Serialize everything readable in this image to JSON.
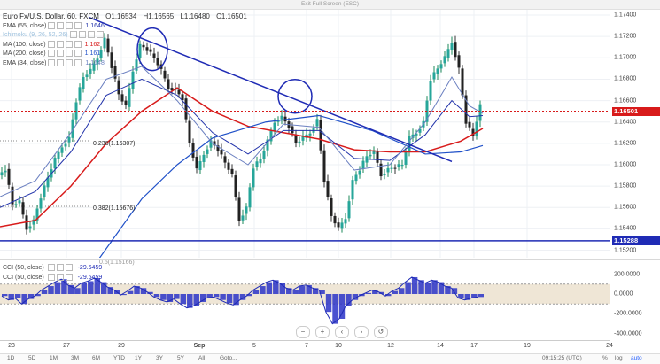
{
  "fullscreen_hint": "Exit Full Screen (ESC)",
  "header": {
    "symbol": "Euro Fx/U.S. Dollar, 60, FXCM",
    "open": "O1.16534",
    "high": "H1.16565",
    "low": "L1.16480",
    "close": "C1.16501"
  },
  "indicators": [
    {
      "name": "EMA (55, close)",
      "value": "1.1646",
      "color": "#2233aa"
    },
    {
      "name": "Ichimoku (9, 26, 52, 26)",
      "value": "",
      "color": "#7fb0d8"
    },
    {
      "name": "MA (100, close)",
      "value": "1.162",
      "color": "#d81b1b"
    },
    {
      "name": "MA (200, close)",
      "value": "1.161",
      "color": "#1f50c8"
    },
    {
      "name": "EMA (34, close)",
      "value": "1.1648",
      "color": "#6a7fc0"
    }
  ],
  "price_axis": {
    "ticks": [
      "1.17400",
      "1.17200",
      "1.17000",
      "1.16800",
      "1.16600",
      "1.16400",
      "1.16200",
      "1.16000",
      "1.15800",
      "1.15600",
      "1.15400",
      "1.15200"
    ],
    "current_price": "1.16501",
    "current_color": "#d81b1b",
    "support_price": "1.15288",
    "support_color": "#1f2bb5"
  },
  "fib_levels": [
    {
      "label": "0.236(1.16307)"
    },
    {
      "label": "0.382(1.15676)"
    },
    {
      "label": "0.5(1.15166)"
    }
  ],
  "cci": {
    "rows": [
      {
        "name": "CCI (50, close)",
        "value": "-29.6459"
      },
      {
        "name": "CCI (50, close)",
        "value": "-29.6459"
      }
    ],
    "ticks": [
      "200.0000",
      "0.0000",
      "-200.0000",
      "-400.0000"
    ],
    "current": "0.0000"
  },
  "time_axis": [
    "23",
    "27",
    "29",
    "Sep",
    "5",
    "7",
    "10",
    "12",
    "14",
    "17",
    "19",
    "24"
  ],
  "zoom": {
    "minus": "−",
    "plus": "+",
    "reset": "↺"
  },
  "bottom_bar": {
    "timeframes": [
      "1D",
      "5D",
      "1M",
      "3M",
      "6M",
      "YTD",
      "1Y",
      "3Y",
      "5Y",
      "All",
      "Goto..."
    ],
    "clock": "09:15:25 (UTC)",
    "percent": "%",
    "log": "log",
    "auto": "auto"
  }
}
